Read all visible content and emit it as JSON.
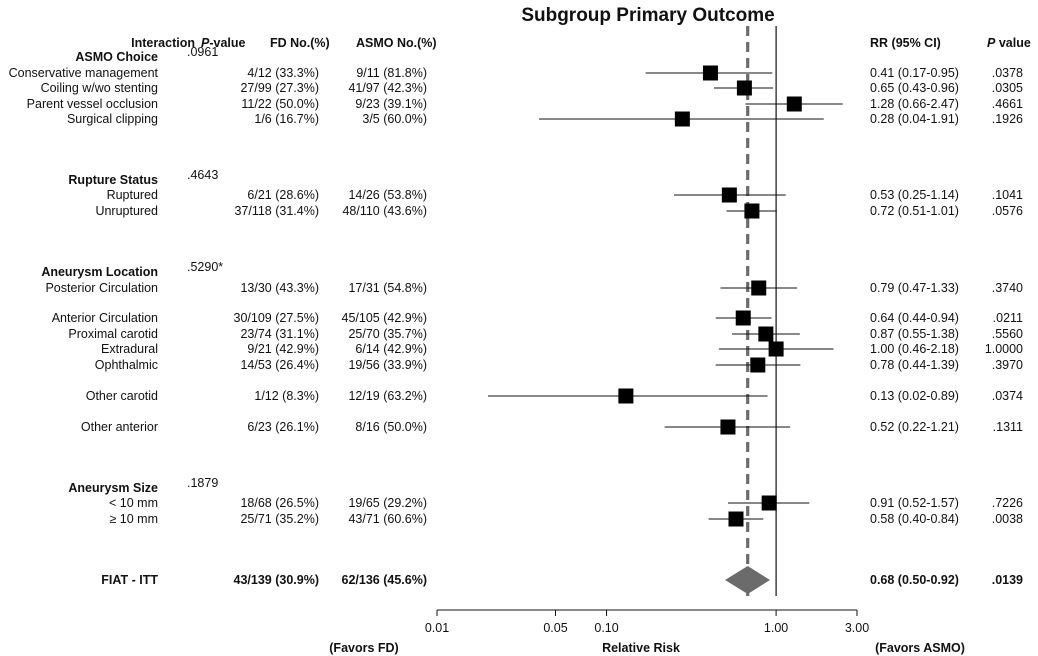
{
  "chart_data": {
    "type": "forest",
    "title": "Subgroup Primary Outcome",
    "headers": {
      "interaction": "Interaction",
      "pvalue_p": "P",
      "pvalue_rest": "-value",
      "fd": "FD No.(%)",
      "asmo": "ASMO No.(%)",
      "rr": "RR (95% CI)",
      "p_right_p": "P",
      "p_right_rest": " value"
    },
    "xlabel": "Relative Risk",
    "favors_left": "(Favors FD)",
    "favors_right": "(Favors ASMO)",
    "x_scale": "log",
    "xlim": [
      0.01,
      3.0
    ],
    "x_ticks": [
      {
        "v": 0.01,
        "label": "0.01"
      },
      {
        "v": 0.05,
        "label": "0.05"
      },
      {
        "v": 0.1,
        "label": "0.10"
      },
      {
        "v": 1.0,
        "label": "1.00"
      },
      {
        "v": 3.0,
        "label": "3.00"
      }
    ],
    "reference_line": 1.0,
    "pooled_line": 0.68,
    "groups": [
      {
        "label": "ASMO Choice",
        "interaction_p": ".0961",
        "rows": [
          {
            "label": "Conservative management",
            "fd": "4/12 (33.3%)",
            "asmo": "9/11 (81.8%)",
            "rr": 0.41,
            "lo": 0.17,
            "hi": 0.95,
            "rr_text": "0.41 (0.17-0.95)",
            "p": ".0378"
          },
          {
            "label": "Coiling w/wo stenting",
            "fd": "27/99 (27.3%)",
            "asmo": "41/97 (42.3%)",
            "rr": 0.65,
            "lo": 0.43,
            "hi": 0.96,
            "rr_text": "0.65 (0.43-0.96)",
            "p": ".0305"
          },
          {
            "label": "Parent vessel occlusion",
            "fd": "11/22 (50.0%)",
            "asmo": "9/23 (39.1%)",
            "rr": 1.28,
            "lo": 0.66,
            "hi": 2.47,
            "rr_text": "1.28 (0.66-2.47)",
            "p": ".4661"
          },
          {
            "label": "Surgical clipping",
            "fd": "1/6 (16.7%)",
            "asmo": "3/5 (60.0%)",
            "rr": 0.28,
            "lo": 0.04,
            "hi": 1.91,
            "rr_text": "0.28 (0.04-1.91)",
            "p": ".1926"
          }
        ]
      },
      {
        "label": "Rupture Status",
        "interaction_p": ".4643",
        "rows": [
          {
            "label": "Ruptured",
            "fd": "6/21 (28.6%)",
            "asmo": "14/26 (53.8%)",
            "rr": 0.53,
            "lo": 0.25,
            "hi": 1.14,
            "rr_text": "0.53 (0.25-1.14)",
            "p": ".1041"
          },
          {
            "label": "Unruptured",
            "fd": "37/118 (31.4%)",
            "asmo": "48/110 (43.6%)",
            "rr": 0.72,
            "lo": 0.51,
            "hi": 1.01,
            "rr_text": "0.72 (0.51-1.01)",
            "p": ".0576"
          }
        ]
      },
      {
        "label": "Aneurysm Location",
        "interaction_p": ".5290*",
        "rows": [
          {
            "label": "Posterior Circulation",
            "fd": "13/30 (43.3%)",
            "asmo": "17/31 (54.8%)",
            "rr": 0.79,
            "lo": 0.47,
            "hi": 1.33,
            "rr_text": "0.79 (0.47-1.33)",
            "p": ".3740"
          },
          {
            "label": "Anterior Circulation",
            "fd": "30/109 (27.5%)",
            "asmo": "45/105 (42.9%)",
            "rr": 0.64,
            "lo": 0.44,
            "hi": 0.94,
            "rr_text": "0.64 (0.44-0.94)",
            "p": ".0211"
          },
          {
            "label": "Proximal carotid",
            "fd": "23/74 (31.1%)",
            "asmo": "25/70 (35.7%)",
            "rr": 0.87,
            "lo": 0.55,
            "hi": 1.38,
            "rr_text": "0.87 (0.55-1.38)",
            "p": ".5560"
          },
          {
            "label": "Extradural",
            "fd": "9/21 (42.9%)",
            "asmo": "6/14 (42.9%)",
            "rr": 1.0,
            "lo": 0.46,
            "hi": 2.18,
            "rr_text": "1.00 (0.46-2.18)",
            "p": "1.0000"
          },
          {
            "label": "Ophthalmic",
            "fd": "14/53 (26.4%)",
            "asmo": "19/56 (33.9%)",
            "rr": 0.78,
            "lo": 0.44,
            "hi": 1.39,
            "rr_text": "0.78 (0.44-1.39)",
            "p": ".3970"
          },
          {
            "label": "Other carotid",
            "fd": "1/12 (8.3%)",
            "asmo": "12/19 (63.2%)",
            "rr": 0.13,
            "lo": 0.02,
            "hi": 0.89,
            "rr_text": "0.13 (0.02-0.89)",
            "p": ".0374"
          },
          {
            "label": "Other anterior",
            "fd": "6/23 (26.1%)",
            "asmo": "8/16 (50.0%)",
            "rr": 0.52,
            "lo": 0.22,
            "hi": 1.21,
            "rr_text": "0.52 (0.22-1.21)",
            "p": ".1311"
          }
        ]
      },
      {
        "label": "Aneurysm Size",
        "interaction_p": ".1879",
        "rows": [
          {
            "label": "< 10 mm",
            "fd": "18/68 (26.5%)",
            "asmo": "19/65 (29.2%)",
            "rr": 0.91,
            "lo": 0.52,
            "hi": 1.57,
            "rr_text": "0.91 (0.52-1.57)",
            "p": ".7226"
          },
          {
            "label": "≥ 10 mm",
            "fd": "25/71 (35.2%)",
            "asmo": "43/71 (60.6%)",
            "rr": 0.58,
            "lo": 0.4,
            "hi": 0.84,
            "rr_text": "0.58 (0.40-0.84)",
            "p": ".0038"
          }
        ]
      }
    ],
    "overall": {
      "label": "FIAT - ITT",
      "fd": "43/139 (30.9%)",
      "asmo": "62/136 (45.6%)",
      "rr": 0.68,
      "lo": 0.5,
      "hi": 0.92,
      "rr_text": "0.68 (0.50-0.92)",
      "p": ".0139"
    },
    "colors": {
      "marker": "#000000",
      "diamond": "#6b6b6b",
      "pooled_line": "#6b6b6b",
      "line": "#111111"
    }
  }
}
